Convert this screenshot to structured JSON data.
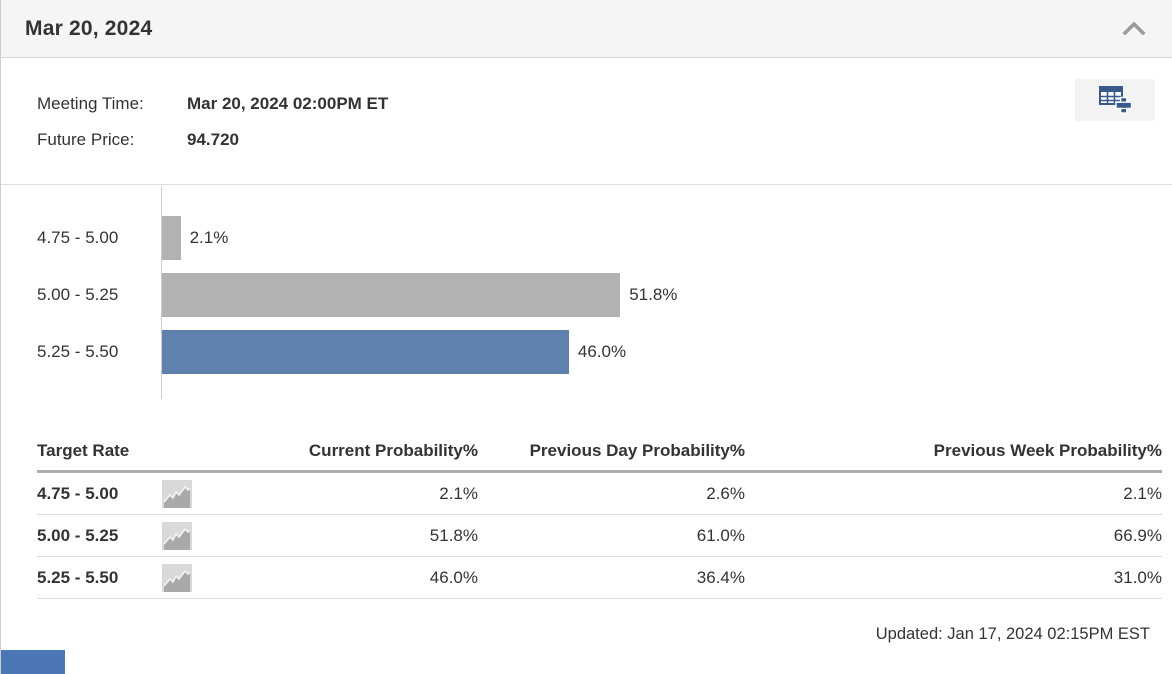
{
  "header": {
    "title": "Mar 20, 2024",
    "collapse_icon": "chevron-up-icon"
  },
  "info": {
    "meeting_time_label": "Meeting Time:",
    "meeting_time_value": "Mar 20, 2024 02:00PM ET",
    "future_price_label": "Future Price:",
    "future_price_value": "94.720",
    "add_table_icon": "table-plus-icon"
  },
  "chart_data": {
    "type": "bar",
    "orientation": "horizontal",
    "categories": [
      "4.75 - 5.00",
      "5.00 - 5.25",
      "5.25 - 5.50"
    ],
    "values": [
      2.1,
      51.8,
      46.0
    ],
    "value_labels": [
      "2.1%",
      "51.8%",
      "46.0%"
    ],
    "bar_colors": [
      "#b2b2b2",
      "#b2b2b2",
      "#5e81ae"
    ],
    "xlim": [
      0,
      100
    ],
    "grid": false,
    "legend": false
  },
  "table": {
    "columns": [
      "Target Rate",
      "Current Probability%",
      "Previous Day Probability%",
      "Previous Week Probability%"
    ],
    "row_icon": "history-chart-icon",
    "rows": [
      {
        "target_rate": "4.75 - 5.00",
        "current": "2.1%",
        "prev_day": "2.6%",
        "prev_week": "2.1%"
      },
      {
        "target_rate": "5.00 - 5.25",
        "current": "51.8%",
        "prev_day": "61.0%",
        "prev_week": "66.9%"
      },
      {
        "target_rate": "5.25 - 5.50",
        "current": "46.0%",
        "prev_day": "36.4%",
        "prev_week": "31.0%"
      }
    ]
  },
  "footer": {
    "updated": "Updated: Jan 17, 2024 02:15PM EST"
  },
  "colors": {
    "header_bg": "#f5f5f5",
    "gray_bar": "#b2b2b2",
    "blue_bar": "#5e81ae",
    "icon_blue": "#38598c",
    "bottom_bar": "#4b77b7",
    "text": "#333333"
  }
}
